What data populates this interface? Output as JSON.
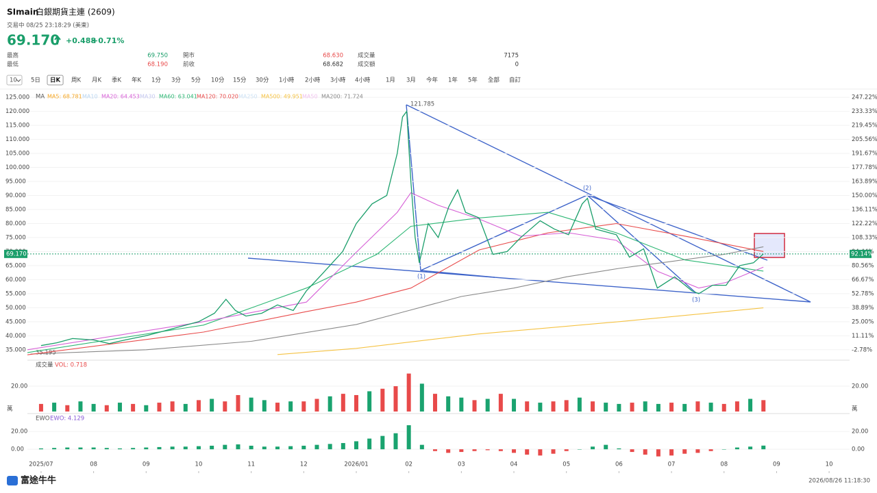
{
  "header": {
    "symbol": "SImain",
    "name": "白銀期貨主連 (2609)",
    "status": "交易中 08/25 23:18:29 (美東)",
    "price": "69.170",
    "change": "+0.488",
    "change_pct": "+0.71%"
  },
  "stats": [
    {
      "label": "最高",
      "value": "69.750"
    },
    {
      "label": "開市",
      "value": "68.630"
    },
    {
      "label": "成交量",
      "value": "7175"
    },
    {
      "label": "最低",
      "value": "68.190"
    },
    {
      "label": "前收",
      "value": "68.682"
    },
    {
      "label": "成交額",
      "value": "0"
    }
  ],
  "toolbar": {
    "selector": "10",
    "periods": [
      "5日",
      "日K",
      "周K",
      "月K",
      "季K",
      "年K",
      "1分",
      "3分",
      "5分",
      "10分",
      "15分",
      "30分",
      "1小時",
      "2小時",
      "3小時",
      "4小時",
      "1月",
      "3月",
      "今年",
      "1年",
      "5年",
      "全部",
      "自訂"
    ],
    "active": 1
  },
  "chart_data": [
    {
      "type": "line",
      "legend_title": "MA",
      "legend": [
        {
          "label": "MA5: 68.781",
          "color": "#f5a623"
        },
        {
          "label": "MA10",
          "color": "#b9d6f2"
        },
        {
          "label": "MA20: 64.453",
          "color": "#d65fd6"
        },
        {
          "label": "MA30",
          "color": "#c4c8f0"
        },
        {
          "label": "MA60: 63.041",
          "color": "#2bb673"
        },
        {
          "label": "MA120: 70.020",
          "color": "#e84a4a"
        },
        {
          "label": "MA250",
          "color": "#cde2f5"
        },
        {
          "label": "MA500: 49.951",
          "color": "#f5c242"
        },
        {
          "label": "MA50",
          "color": "#f0c2ee"
        },
        {
          "label": "MA200: 71.724",
          "color": "#888888"
        }
      ],
      "price": {
        "color": "#1a9e6a",
        "x": [
          0,
          0.3,
          0.6,
          1,
          1.3,
          1.6,
          2,
          2.3,
          2.6,
          3,
          3.3,
          3.52,
          3.7,
          3.9,
          4.2,
          4.5,
          4.8,
          5.05,
          5.35,
          5.74,
          6,
          6.3,
          6.58,
          6.78,
          6.88,
          6.96,
          7.04,
          7.12,
          7.2,
          7.37,
          7.56,
          7.76,
          7.93,
          8.08,
          8.34,
          8.6,
          8.87,
          9.13,
          9.5,
          9.77,
          10.04,
          10.3,
          10.4,
          10.56,
          10.95,
          11.2,
          11.47,
          11.73,
          12.06,
          12.39,
          12.52,
          12.78,
          13.04,
          13.3,
          13.56,
          13.75
        ],
        "values": [
          36.5,
          37.5,
          39,
          38.5,
          37.2,
          38.5,
          40,
          41.5,
          43,
          45,
          48,
          53,
          49,
          47,
          48,
          51,
          49,
          56,
          62,
          70,
          80,
          87,
          90,
          105,
          118,
          120,
          95,
          75,
          66,
          80,
          75,
          86,
          92,
          84,
          82,
          69,
          70,
          75,
          81,
          78,
          76,
          87,
          89,
          78,
          76,
          68,
          71,
          57,
          61,
          56,
          55,
          58,
          58,
          65,
          66,
          69.17
        ]
      },
      "series": [
        {
          "color": "#888888",
          "x": [
            -0.2,
            2,
            4,
            6,
            7,
            8,
            9,
            10,
            11,
            12,
            13,
            13.75
          ],
          "values": [
            33.5,
            35,
            38,
            44,
            49,
            54,
            57,
            61,
            64,
            66.5,
            69,
            71.724
          ]
        },
        {
          "color": "#f5c242",
          "x": [
            4.5,
            6,
            7,
            8.3,
            11,
            13.75
          ],
          "values": [
            33.3,
            35.5,
            37.7,
            40.6,
            45,
            49.951
          ]
        },
        {
          "color": "#e84a4a",
          "x": [
            -0.26,
            3.09,
            5.05,
            6,
            7.04,
            8.34,
            9.65,
            10.95,
            12.26,
            13.75
          ],
          "values": [
            33.2,
            41.3,
            48.6,
            52,
            57,
            70.6,
            76.7,
            80,
            75.5,
            70.02
          ]
        },
        {
          "color": "#2bb673",
          "x": [
            -0.26,
            3.09,
            5.05,
            6.39,
            7.04,
            8.34,
            9.65,
            10.95,
            12.26,
            13.75
          ],
          "values": [
            34,
            43.8,
            57,
            69,
            79,
            82,
            84,
            76.7,
            67,
            63.041
          ]
        },
        {
          "color": "#d65fd6",
          "x": [
            -0.26,
            3.09,
            5.05,
            5.96,
            6.78,
            7.04,
            7.56,
            8.34,
            9.13,
            10.04,
            10.95,
            11.73,
            12.52,
            13.04,
            13.75
          ],
          "values": [
            35,
            45,
            52,
            69,
            84,
            91,
            86.5,
            81.6,
            75.5,
            76.7,
            74,
            63,
            57,
            59,
            64.453
          ]
        }
      ],
      "last": {
        "value": 69.17,
        "label": "69.170",
        "pct": "92.14%",
        "color": "#1a9e6a"
      },
      "peak_label": "121.785",
      "low_label": "35.195",
      "waves": [
        "(1)",
        "(2)",
        "(3)"
      ],
      "xlim": [
        -0.26,
        15.39
      ],
      "ylim": [
        33,
        126
      ],
      "yticks": [
        {
          "value": 125,
          "label": "125.000"
        },
        {
          "value": 120,
          "label": "120.000"
        },
        {
          "value": 115,
          "label": "115.000"
        },
        {
          "value": 110,
          "label": "110.000"
        },
        {
          "value": 105,
          "label": "105.000"
        },
        {
          "value": 100,
          "label": "100.000"
        },
        {
          "value": 95,
          "label": "95.000"
        },
        {
          "value": 90,
          "label": "90.000"
        },
        {
          "value": 85,
          "label": "85.000"
        },
        {
          "value": 80,
          "label": "80.000"
        },
        {
          "value": 75,
          "label": "75.000"
        },
        {
          "value": 70,
          "label": "70.000"
        },
        {
          "value": 65,
          "label": "65.000"
        },
        {
          "value": 60,
          "label": "60.000"
        },
        {
          "value": 55,
          "label": "55.000"
        },
        {
          "value": 50,
          "label": "50.000"
        },
        {
          "value": 45,
          "label": "45.000"
        },
        {
          "value": 40,
          "label": "40.000"
        },
        {
          "value": 35,
          "label": "35.000"
        }
      ],
      "right_labels": [
        "247.22%",
        "233.33%",
        "219.45%",
        "205.56%",
        "191.67%",
        "177.78%",
        "163.89%",
        "150.00%",
        "136.11%",
        "122.22%",
        "108.33%",
        "94.44%",
        "80.56%",
        "66.67%",
        "52.78%",
        "38.89%",
        "25.00%",
        "11.11%",
        "-2.78%"
      ],
      "xticks": [
        {
          "value": 0,
          "label": "2025/07"
        },
        {
          "value": 1,
          "label": "08"
        },
        {
          "value": 2,
          "label": "09"
        },
        {
          "value": 3,
          "label": "10"
        },
        {
          "value": 4,
          "label": "11"
        },
        {
          "value": 5,
          "label": "12"
        },
        {
          "value": 6,
          "label": "2026/01"
        },
        {
          "value": 7,
          "label": "02"
        },
        {
          "value": 8,
          "label": "03"
        },
        {
          "value": 9,
          "label": "04"
        },
        {
          "value": 10,
          "label": "05"
        },
        {
          "value": 11,
          "label": "06"
        },
        {
          "value": 12,
          "label": "07"
        },
        {
          "value": 13,
          "label": "08"
        },
        {
          "value": 14,
          "label": "09"
        },
        {
          "value": 15,
          "label": "10"
        }
      ]
    },
    {
      "type": "bar",
      "title": "成交量",
      "indicator": "VOL: 0.718",
      "unit": "萬",
      "up_color": "#e84a4a",
      "down_color": "#1aa36f",
      "x": [
        0,
        0.25,
        0.5,
        0.75,
        1,
        1.25,
        1.5,
        1.75,
        2,
        2.25,
        2.5,
        2.75,
        3,
        3.25,
        3.5,
        3.75,
        4,
        4.25,
        4.5,
        4.75,
        5,
        5.25,
        5.5,
        5.75,
        6,
        6.25,
        6.5,
        6.75,
        7,
        7.25,
        7.5,
        7.75,
        8,
        8.25,
        8.5,
        8.75,
        9,
        9.25,
        9.5,
        9.75,
        10,
        10.25,
        10.5,
        10.75,
        11,
        11.25,
        11.5,
        11.75,
        12,
        12.25,
        12.5,
        12.75,
        13,
        13.25,
        13.5,
        13.75
      ],
      "values": [
        6,
        7,
        5,
        8,
        6,
        5,
        7,
        6,
        5,
        7,
        8,
        6,
        9,
        10,
        8,
        13,
        11,
        9,
        7,
        8,
        8,
        10,
        12,
        14,
        13,
        16,
        18,
        20,
        30,
        22,
        14,
        12,
        11,
        9,
        10,
        14,
        10,
        8,
        7,
        8,
        9,
        11,
        8,
        7,
        6,
        7,
        8,
        6,
        7,
        6,
        8,
        7,
        6,
        8,
        10,
        9
      ],
      "up": [
        1,
        0,
        1,
        0,
        0,
        1,
        0,
        1,
        0,
        1,
        1,
        0,
        1,
        0,
        1,
        1,
        0,
        0,
        1,
        0,
        1,
        1,
        0,
        1,
        1,
        0,
        1,
        1,
        1,
        0,
        1,
        0,
        0,
        1,
        0,
        1,
        0,
        1,
        0,
        1,
        1,
        0,
        1,
        0,
        0,
        1,
        0,
        0,
        1,
        0,
        1,
        0,
        1,
        1,
        0,
        1
      ],
      "ylim": [
        0,
        39.5
      ],
      "yticks": [
        {
          "value": 20,
          "label": "20.00"
        }
      ]
    },
    {
      "type": "bar",
      "title": "EWO",
      "indicator": "EWO: 4.129",
      "up_color": "#1aa36f",
      "down_color": "#e84a4a",
      "x": [
        0,
        0.25,
        0.5,
        0.75,
        1,
        1.25,
        1.5,
        1.75,
        2,
        2.25,
        2.5,
        2.75,
        3,
        3.25,
        3.5,
        3.75,
        4,
        4.25,
        4.5,
        4.75,
        5,
        5.25,
        5.5,
        5.75,
        6,
        6.25,
        6.5,
        6.75,
        7,
        7.25,
        7.5,
        7.75,
        8,
        8.25,
        8.5,
        8.75,
        9,
        9.25,
        9.5,
        9.75,
        10,
        10.25,
        10.5,
        10.75,
        11,
        11.25,
        11.5,
        11.75,
        12,
        12.25,
        12.5,
        12.75,
        13,
        13.25,
        13.5,
        13.75
      ],
      "values": [
        1,
        1.5,
        2,
        2,
        2,
        1.5,
        1,
        1.5,
        2,
        2.5,
        3,
        3,
        3.5,
        4,
        5,
        5.5,
        4,
        3,
        3,
        3.5,
        4,
        5,
        6,
        7,
        9,
        12,
        15,
        18,
        27,
        5,
        -2,
        -4,
        -3,
        -2,
        -1,
        -2,
        -4,
        -6,
        -7,
        -5,
        -2,
        0,
        3,
        5,
        1,
        -3,
        -6,
        -8,
        -7,
        -5,
        -4,
        -2,
        0,
        2,
        3,
        4.129
      ],
      "ylim": [
        -26,
        37
      ],
      "yticks": [
        {
          "value": 20,
          "label": "20.00"
        },
        {
          "value": 0,
          "label": "0.00"
        }
      ]
    }
  ],
  "footer": {
    "brand": "富途牛牛",
    "timestamp": "2026/08/26 11:18:30"
  }
}
